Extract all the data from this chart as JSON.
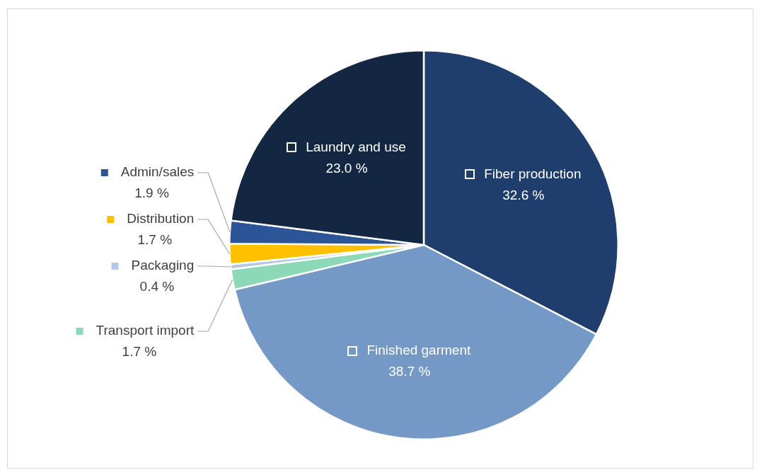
{
  "chart_data": {
    "type": "pie",
    "categories": [
      "Fiber production",
      "Finished garment",
      "Transport import",
      "Packaging",
      "Distribution",
      "Admin/sales",
      "Laundry and use"
    ],
    "values": [
      32.6,
      38.7,
      1.7,
      0.4,
      1.7,
      1.9,
      23.0
    ],
    "value_labels": [
      "32.6 %",
      "38.7 %",
      "1.7 %",
      "0.4 %",
      "1.7 %",
      "1.9 %",
      "23.0 %"
    ],
    "colors": [
      "#1f3e6e",
      "#7499c7",
      "#8cd9b8",
      "#b4c7e7",
      "#ffc000",
      "#2b5597",
      "#132743"
    ],
    "legend": "left"
  }
}
